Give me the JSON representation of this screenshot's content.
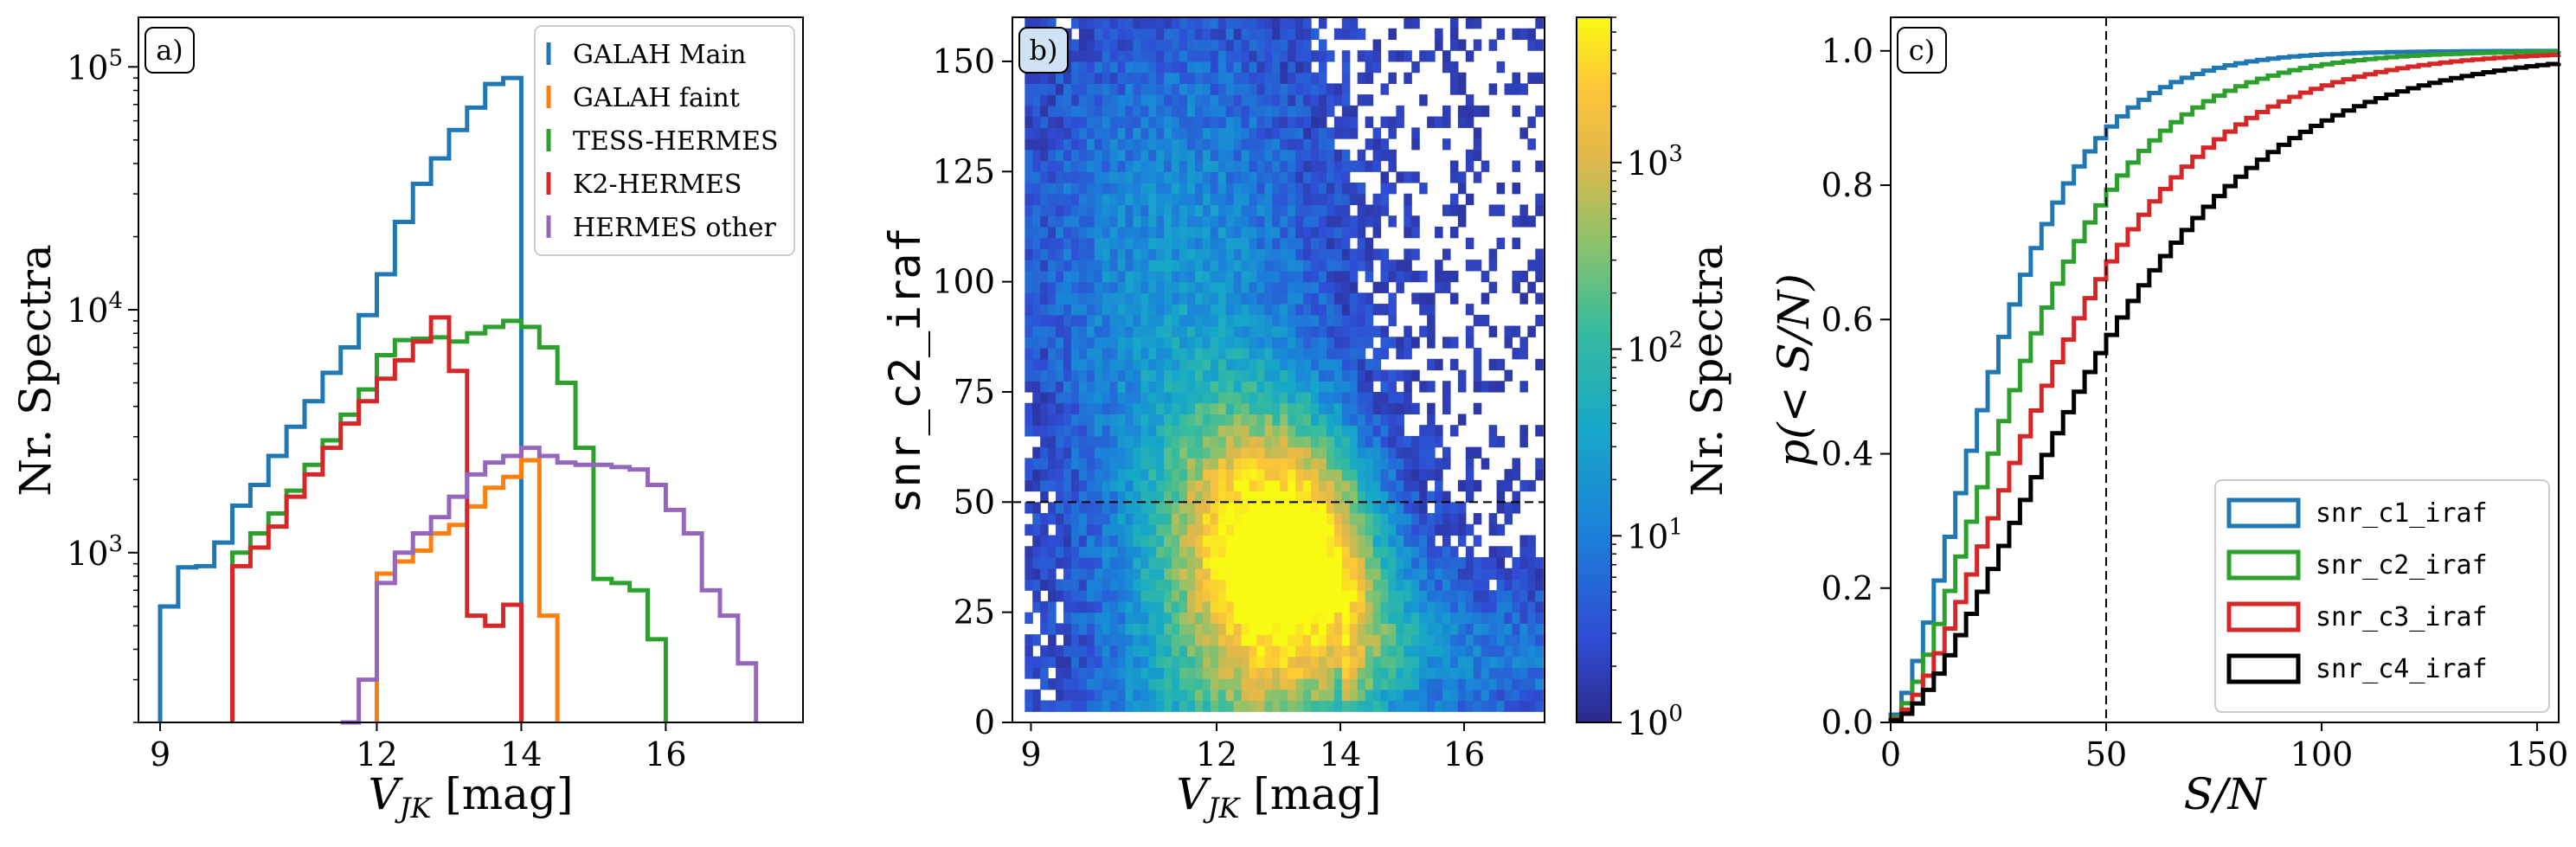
{
  "chart_data": [
    {
      "type": "histogram-step",
      "panel_label": "a)",
      "xlabel": "V_JK [mag]",
      "ylabel": "Nr. Spectra",
      "xlim": [
        8.7,
        17.9
      ],
      "ylim": [
        200,
        160000
      ],
      "yscale": "log",
      "x_ticks": [
        9,
        12,
        14,
        16
      ],
      "y_ticks": [
        {
          "value": 1000,
          "base": "10",
          "exp": "3"
        },
        {
          "value": 10000,
          "base": "10",
          "exp": "4"
        },
        {
          "value": 100000,
          "base": "10",
          "exp": "5"
        }
      ],
      "legend_position": "top-right",
      "series": [
        {
          "name": "GALAH Main",
          "color": "#1f77b4",
          "edges": [
            9.0,
            9.25,
            9.5,
            9.75,
            10.0,
            10.25,
            10.5,
            10.75,
            11.0,
            11.25,
            11.5,
            11.75,
            12.0,
            12.25,
            12.5,
            12.75,
            13.0,
            13.25,
            13.5,
            13.75,
            14.0
          ],
          "counts": [
            600,
            870,
            880,
            1100,
            1560,
            1900,
            2500,
            3300,
            4200,
            5500,
            7000,
            9500,
            14000,
            23000,
            33000,
            42000,
            55000,
            68000,
            85000,
            90000
          ]
        },
        {
          "name": "GALAH faint",
          "color": "#ff7f0e",
          "edges": [
            12.0,
            12.25,
            12.5,
            12.75,
            13.0,
            13.25,
            13.5,
            13.75,
            14.0,
            14.25,
            14.5
          ],
          "counts": [
            820,
            920,
            1020,
            1200,
            1300,
            1550,
            1850,
            2050,
            2400,
            550
          ]
        },
        {
          "name": "TESS-HERMES",
          "color": "#2ca02c",
          "edges": [
            10.0,
            10.25,
            10.5,
            10.75,
            11.0,
            11.25,
            11.5,
            11.75,
            12.0,
            12.25,
            12.5,
            12.75,
            13.0,
            13.25,
            13.5,
            13.75,
            14.0,
            14.25,
            14.5,
            14.75,
            15.0,
            15.25,
            15.5,
            15.75,
            16.0
          ],
          "counts": [
            1000,
            1200,
            1450,
            1800,
            2300,
            2900,
            3700,
            4700,
            6500,
            7500,
            7600,
            7700,
            7400,
            8000,
            8500,
            9000,
            8500,
            7000,
            5000,
            2700,
            780,
            750,
            700,
            440
          ]
        },
        {
          "name": "K2-HERMES",
          "color": "#d62728",
          "edges": [
            10.0,
            10.25,
            10.5,
            10.75,
            11.0,
            11.25,
            11.5,
            11.75,
            12.0,
            12.25,
            12.5,
            12.75,
            13.0,
            13.25,
            13.5,
            13.75,
            14.0
          ],
          "counts": [
            880,
            1050,
            1280,
            1700,
            2100,
            2700,
            3400,
            4200,
            5200,
            6200,
            7400,
            9300,
            5600,
            550,
            500,
            610
          ]
        },
        {
          "name": "HERMES other",
          "color": "#9467bd",
          "edges": [
            11.5,
            11.75,
            12.0,
            12.25,
            12.5,
            12.75,
            13.0,
            13.25,
            13.5,
            13.75,
            14.0,
            14.25,
            14.5,
            14.75,
            15.0,
            15.25,
            15.5,
            15.75,
            16.0,
            16.25,
            16.5,
            16.75,
            17.0,
            17.25
          ],
          "counts": [
            200,
            300,
            750,
            1000,
            1200,
            1400,
            1700,
            2100,
            2350,
            2500,
            2700,
            2500,
            2350,
            2300,
            2300,
            2250,
            2200,
            1900,
            1500,
            1200,
            700,
            550,
            350
          ]
        }
      ]
    },
    {
      "type": "heatmap",
      "panel_label": "b)",
      "xlabel": "V_JK [mag]",
      "ylabel": "snr_c2_iraf",
      "xlim": [
        8.7,
        17.3
      ],
      "ylim": [
        0,
        160
      ],
      "x_ticks": [
        9,
        12,
        14,
        16
      ],
      "y_ticks": [
        0,
        25,
        50,
        75,
        100,
        125,
        150
      ],
      "hline": 50,
      "colorbar": {
        "label": "Nr. Spectra",
        "scale": "log",
        "range": [
          1,
          6000
        ],
        "ticks": [
          {
            "value": 1,
            "base": "10",
            "exp": "0"
          },
          {
            "value": 10,
            "base": "10",
            "exp": "1"
          },
          {
            "value": 100,
            "base": "10",
            "exp": "2"
          },
          {
            "value": 1000,
            "base": "10",
            "exp": "3"
          }
        ]
      }
    },
    {
      "type": "cumulative-step",
      "panel_label": "c)",
      "xlabel": "S/N",
      "ylabel": "p(< S/N)",
      "xlim": [
        0,
        155
      ],
      "ylim": [
        0,
        1.05
      ],
      "x_ticks": [
        0,
        50,
        100,
        150
      ],
      "y_ticks": [
        "0.0",
        "0.2",
        "0.4",
        "0.6",
        "0.8",
        "1.0"
      ],
      "vline": 50,
      "legend_position": "lower-right",
      "series": [
        {
          "name": "snr_c1_iraf",
          "color": "#1f77b4",
          "value_at_50": 0.87,
          "median": 22
        },
        {
          "name": "snr_c2_iraf",
          "color": "#2ca02c",
          "value_at_50": 0.77,
          "median": 28
        },
        {
          "name": "snr_c3_iraf",
          "color": "#d62728",
          "value_at_50": 0.66,
          "median": 34
        },
        {
          "name": "snr_c4_iraf",
          "color": "#000000",
          "value_at_50": 0.55,
          "median": 45
        }
      ]
    }
  ]
}
